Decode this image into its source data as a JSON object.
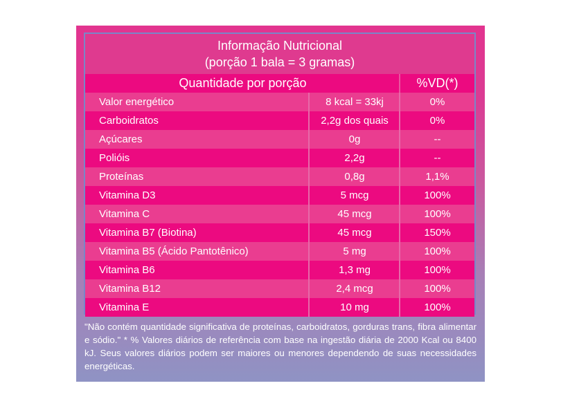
{
  "title": {
    "line1": "Informação Nutricional",
    "line2": "(porção 1 bala = 3 gramas)"
  },
  "header": {
    "quantity": "Quantidade por porção",
    "dv": "%VD(*)"
  },
  "rows": [
    {
      "name": "Valor energético",
      "amount": "8 kcal = 33kj",
      "dv": "0%"
    },
    {
      "name": "Carboidratos",
      "amount": "2,2g dos quais",
      "dv": "0%"
    },
    {
      "name": "Açúcares",
      "amount": "0g",
      "dv": "--"
    },
    {
      "name": "Polióis",
      "amount": "2,2g",
      "dv": "--"
    },
    {
      "name": "Proteínas",
      "amount": "0,8g",
      "dv": "1,1%"
    },
    {
      "name": "Vitamina D3",
      "amount": "5 mcg",
      "dv": "100%"
    },
    {
      "name": "Vitamina C",
      "amount": "45 mcg",
      "dv": "100%"
    },
    {
      "name": "Vitamina B7 (Biotina)",
      "amount": "45 mcg",
      "dv": "150%"
    },
    {
      "name": "Vitamina B5 (Ácido Pantotênico)",
      "amount": "5 mg",
      "dv": "100%"
    },
    {
      "name": "Vitamina B6",
      "amount": "1,3 mg",
      "dv": "100%"
    },
    {
      "name": "Vitamina B12",
      "amount": "2,4 mcg",
      "dv": "100%"
    },
    {
      "name": "Vitamina E",
      "amount": "10 mg",
      "dv": "100%"
    }
  ],
  "footnote": "\"Não contém quantidade significativa de proteínas, carboidratos, gorduras trans, fibra alimentar e sódio.\" * % Valores diários de referência com base na ingestão diária de 2000 Kcal ou 8400 kJ. Seus valores diários podem ser maiores ou menores dependendo de suas necessidades energéticas.",
  "colors": {
    "header_pink": "#ec0a80",
    "row_pink": "#ea3d90",
    "border_blue": "#7a86c8",
    "gradient_bottom": "#8f93c4"
  }
}
